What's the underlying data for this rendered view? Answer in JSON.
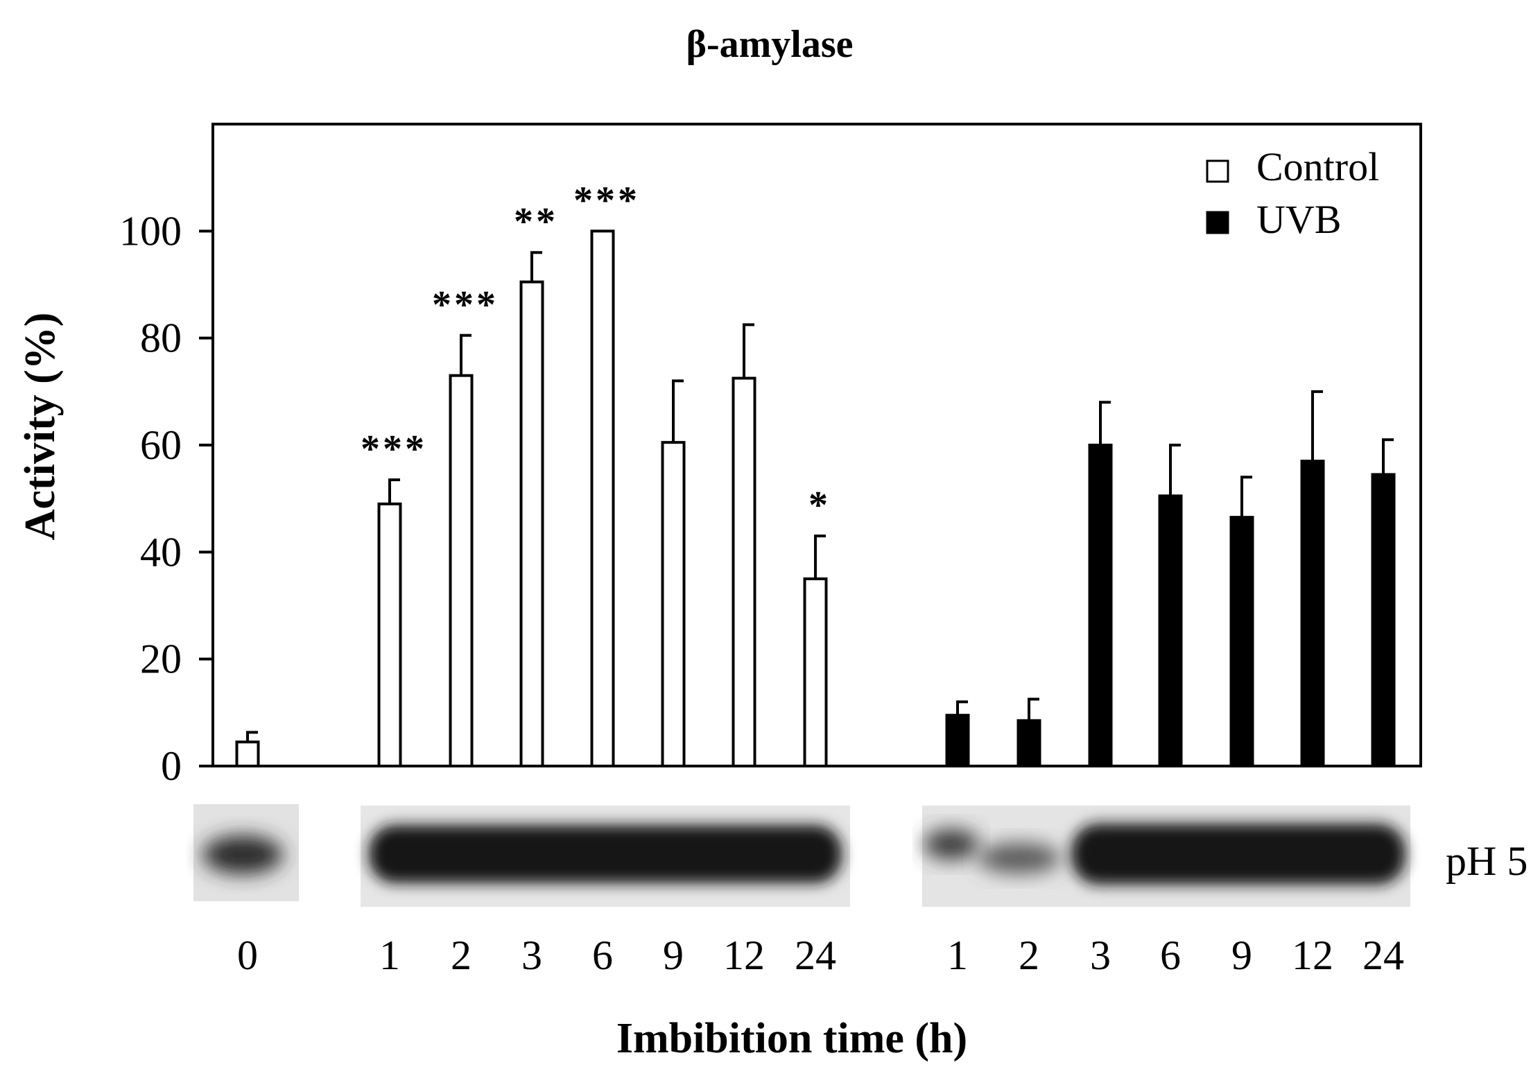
{
  "chart_data": {
    "type": "bar",
    "title": "β-amylase",
    "xlabel": "Imbibition time (h)",
    "ylabel": "Activity (%)",
    "ylim": [
      0,
      120
    ],
    "yticks": [
      0,
      20,
      40,
      60,
      80,
      100
    ],
    "legend_position": "top-right",
    "series": [
      {
        "name": "Control",
        "fill": "#ffffff",
        "categories": [
          "0",
          "1",
          "2",
          "3",
          "6",
          "9",
          "12",
          "24"
        ],
        "values": [
          4.5,
          49,
          73,
          90.5,
          100,
          60.5,
          72.5,
          35
        ],
        "errors": [
          1.8,
          4.5,
          7.5,
          5.5,
          0,
          11.5,
          10,
          8
        ],
        "significance": [
          "",
          "***",
          "***",
          "**",
          "***",
          "",
          "",
          "*"
        ]
      },
      {
        "name": "UVB",
        "fill": "#000000",
        "categories": [
          "1",
          "2",
          "3",
          "6",
          "9",
          "12",
          "24"
        ],
        "values": [
          9.5,
          8.5,
          60,
          50.5,
          46.5,
          57,
          54.5
        ],
        "errors": [
          2.5,
          4,
          8,
          9.5,
          7.5,
          13,
          6.5
        ],
        "significance": [
          "",
          "",
          "",
          "",
          "",
          "",
          ""
        ]
      }
    ],
    "gel_label": "pH 5"
  }
}
